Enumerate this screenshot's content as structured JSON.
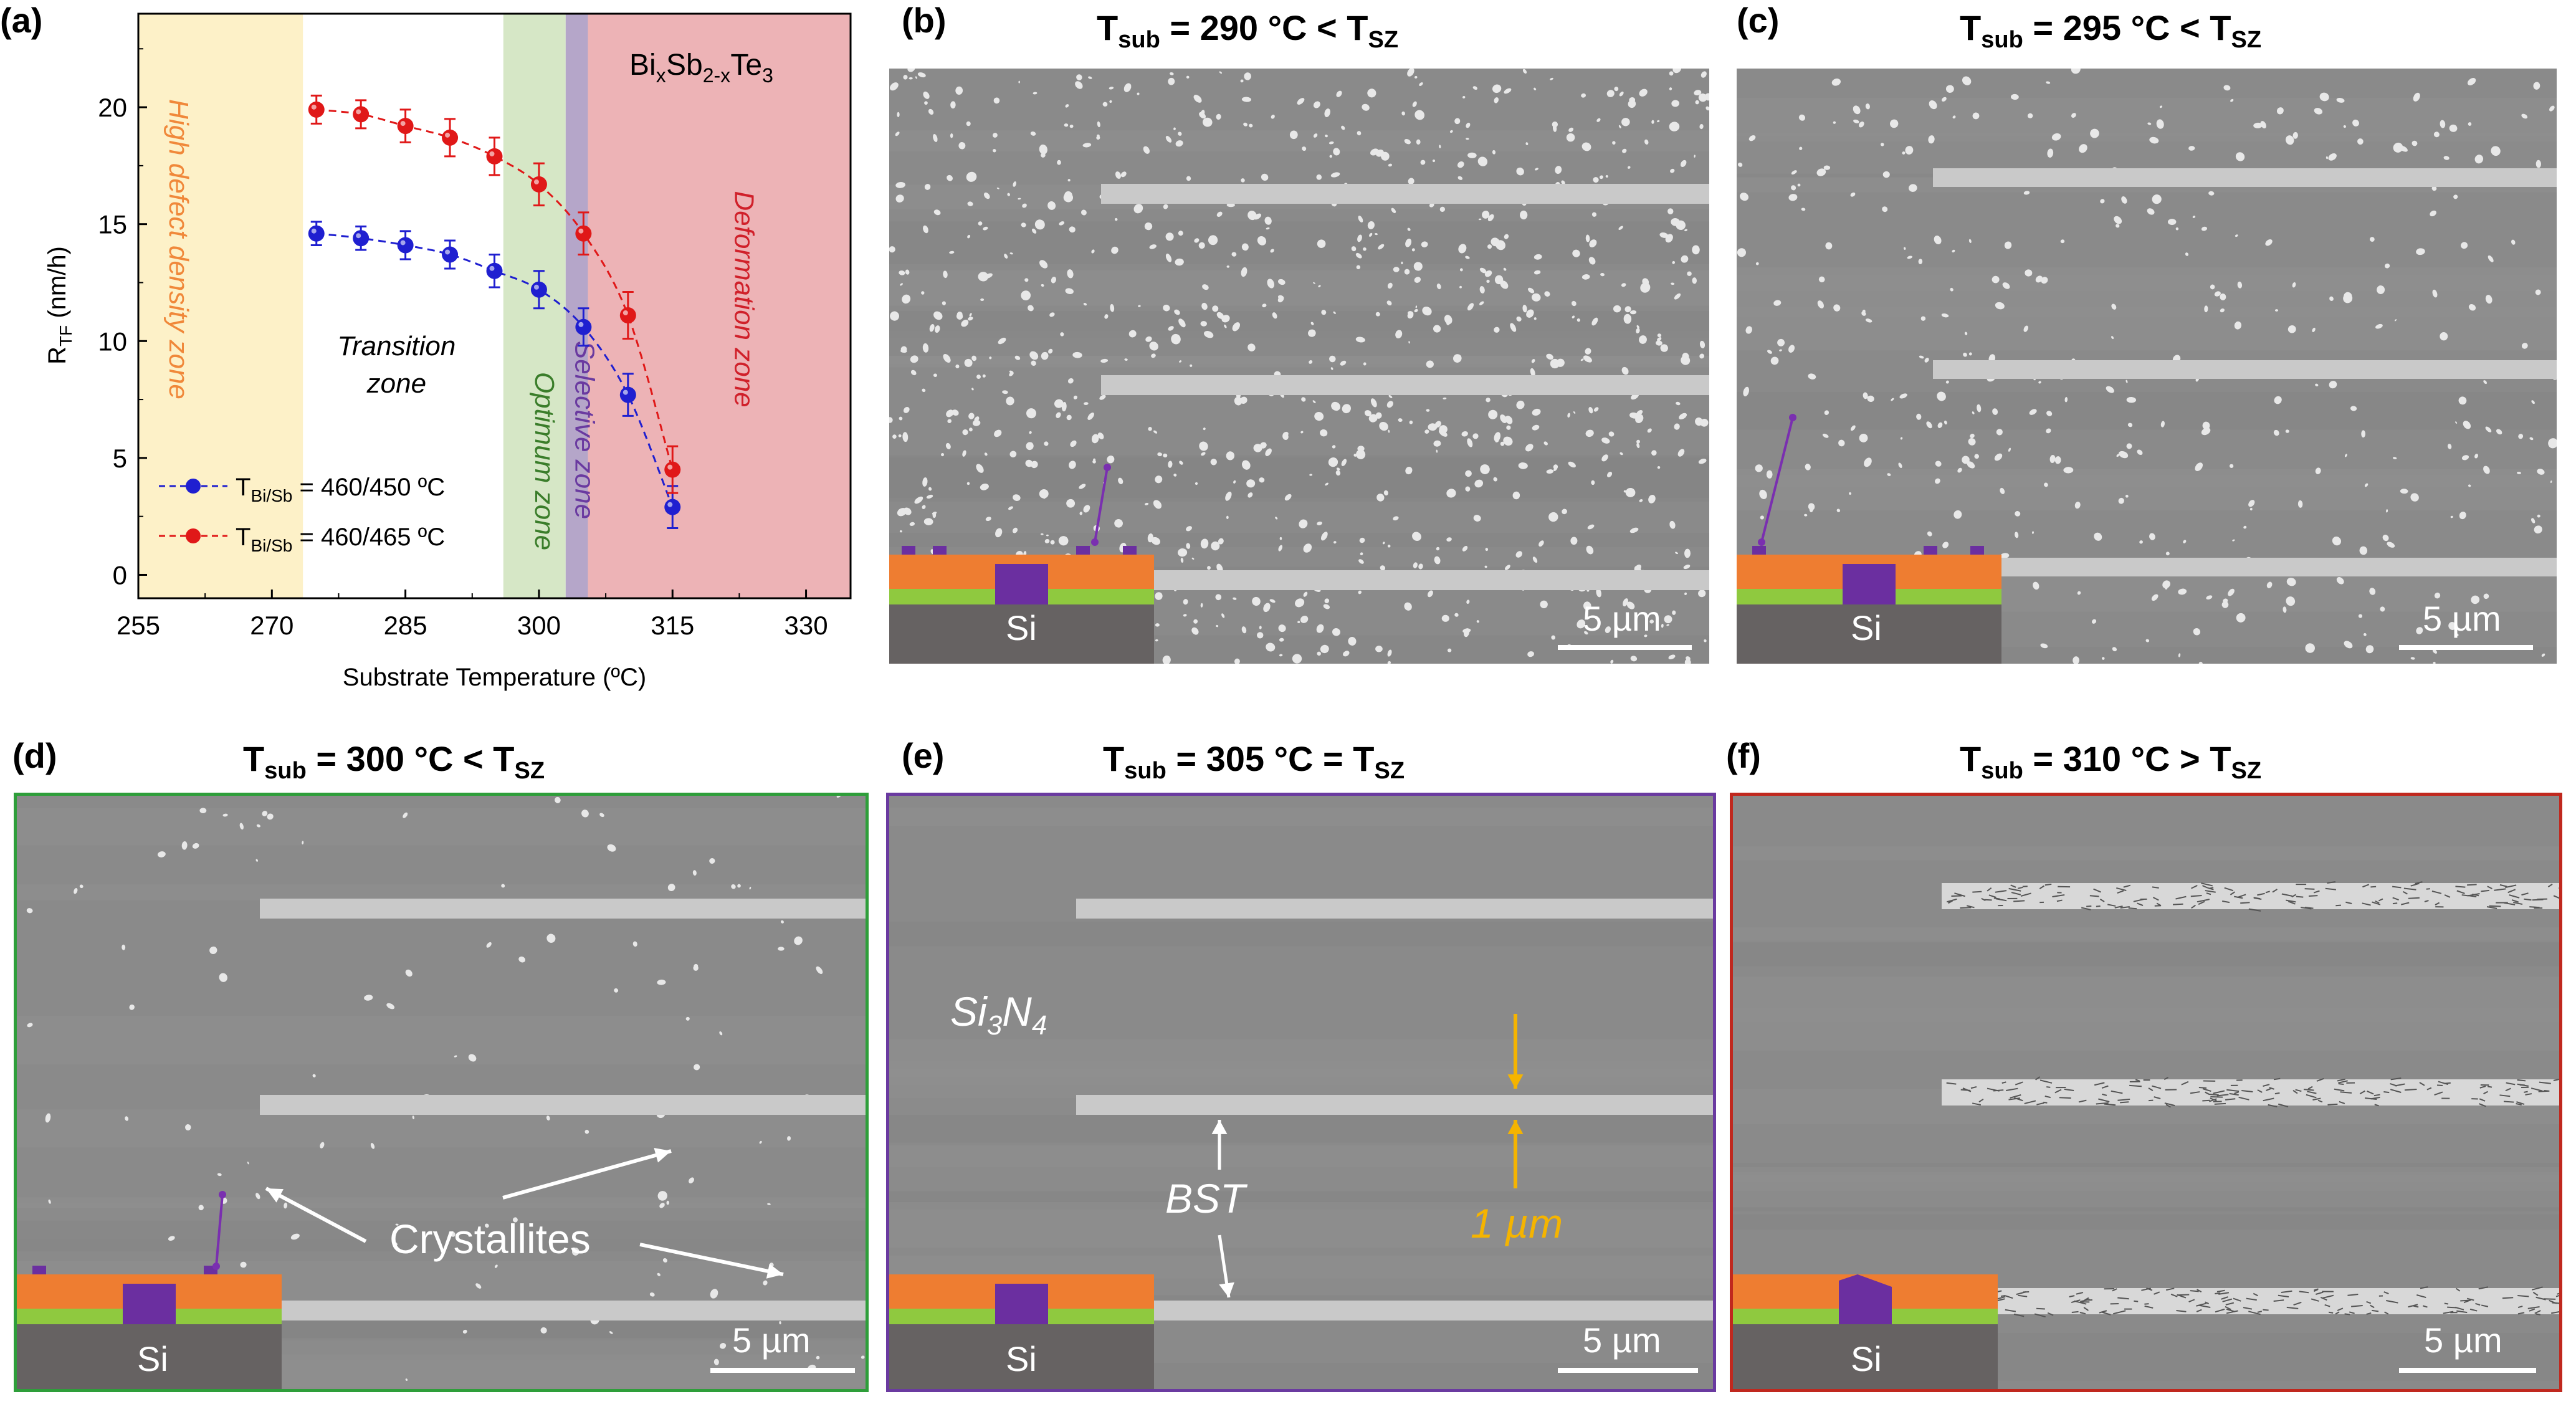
{
  "panels": {
    "a": {
      "label": "(a)"
    },
    "b": {
      "label": "(b)",
      "title_main": "T",
      "title_sub": "sub",
      "title_mid": " = 290 ",
      "title_unit": "°C < T",
      "title_sub2": "SZ",
      "scale": "5 µm",
      "si": "Si"
    },
    "c": {
      "label": "(c)",
      "title_main": "T",
      "title_sub": "sub",
      "title_mid": " = 295 ",
      "title_unit": "°C < T",
      "title_sub2": "SZ",
      "scale": "5 µm",
      "si": "Si"
    },
    "d": {
      "label": "(d)",
      "title_main": "T",
      "title_sub": "sub",
      "title_mid": " = 300 ",
      "title_unit": "°C < T",
      "title_sub2": "SZ",
      "scale": "5 µm",
      "si": "Si",
      "annotation": "Crystallites"
    },
    "e": {
      "label": "(e)",
      "title_main": "T",
      "title_sub": "sub",
      "title_mid": " = 305 ",
      "title_unit": "°C = T",
      "title_sub2": "SZ",
      "scale": "5 µm",
      "si": "Si",
      "substrate_label": "Si3N4",
      "bst": "BST",
      "width": "1 µm"
    },
    "f": {
      "label": "(f)",
      "title_main": "T",
      "title_sub": "sub",
      "title_mid": " = 310 ",
      "title_unit": "°C > T",
      "title_sub2": "SZ",
      "scale": "5 µm",
      "si": "Si"
    }
  },
  "chart_data": {
    "type": "line",
    "title": "",
    "xlabel": "Substrate Temperature (ºC)",
    "ylabel": "R_TF (nm/h)",
    "xlim": [
      255,
      335
    ],
    "ylim": [
      -1,
      24
    ],
    "xticks": [
      255,
      270,
      285,
      300,
      315,
      330
    ],
    "yticks": [
      0,
      5,
      10,
      15,
      20
    ],
    "material_label": "BixSb2-xTe3",
    "zones": [
      {
        "name": "High defect density zone",
        "x0": 255,
        "x1": 273.5,
        "color": "#fdf1c8",
        "label_color": "#f0883a"
      },
      {
        "name": "Transition zone",
        "x0": 273.5,
        "x1": 296,
        "color": "#ffffff",
        "label_color": "#000000"
      },
      {
        "name": "Optimum zone",
        "x0": 296,
        "x1": 303,
        "color": "#d6e7c6",
        "label_color": "#3a7d2a"
      },
      {
        "name": "Selective zone",
        "x0": 303,
        "x1": 305.5,
        "color": "#b5a6c9",
        "label_color": "#6a3aa0"
      },
      {
        "name": "Deformation zone",
        "x0": 305.5,
        "x1": 335,
        "color": "#edb3b6",
        "label_color": "#d0202a"
      }
    ],
    "series": [
      {
        "name": "T_Bi/Sb = 460/450 ºC",
        "legend_prefix": "T",
        "legend_sub": "Bi/Sb",
        "legend_rest": " = 460/450 ºC",
        "color": "#1f1fd0",
        "x": [
          275,
          280,
          285,
          290,
          295,
          300,
          305,
          310,
          315
        ],
        "y": [
          14.6,
          14.4,
          14.1,
          13.7,
          13.0,
          12.2,
          10.6,
          7.7,
          2.9
        ],
        "err": [
          0.5,
          0.5,
          0.6,
          0.6,
          0.7,
          0.8,
          0.8,
          0.9,
          0.9
        ]
      },
      {
        "name": "T_Bi/Sb = 460/465 ºC",
        "legend_prefix": "T",
        "legend_sub": "Bi/Sb",
        "legend_rest": " = 460/465 ºC",
        "color": "#e01818",
        "x": [
          275,
          280,
          285,
          290,
          295,
          300,
          305,
          310,
          315
        ],
        "y": [
          19.9,
          19.7,
          19.2,
          18.7,
          17.9,
          16.7,
          14.6,
          11.1,
          4.5
        ],
        "err": [
          0.6,
          0.6,
          0.7,
          0.8,
          0.8,
          0.9,
          0.9,
          1.0,
          1.0
        ]
      }
    ]
  },
  "colors": {
    "sem_bg": "#8a8a8a",
    "stripe": "#c9c9c9",
    "orange_layer": "#ee7d31",
    "green_layer": "#8fc93f",
    "purple": "#6b2fa0",
    "si_block": "#666262",
    "frame_d": "#2e9e3a",
    "frame_e": "#6a3aa0",
    "frame_f": "#c0281e",
    "yellow": "#f5b400"
  }
}
